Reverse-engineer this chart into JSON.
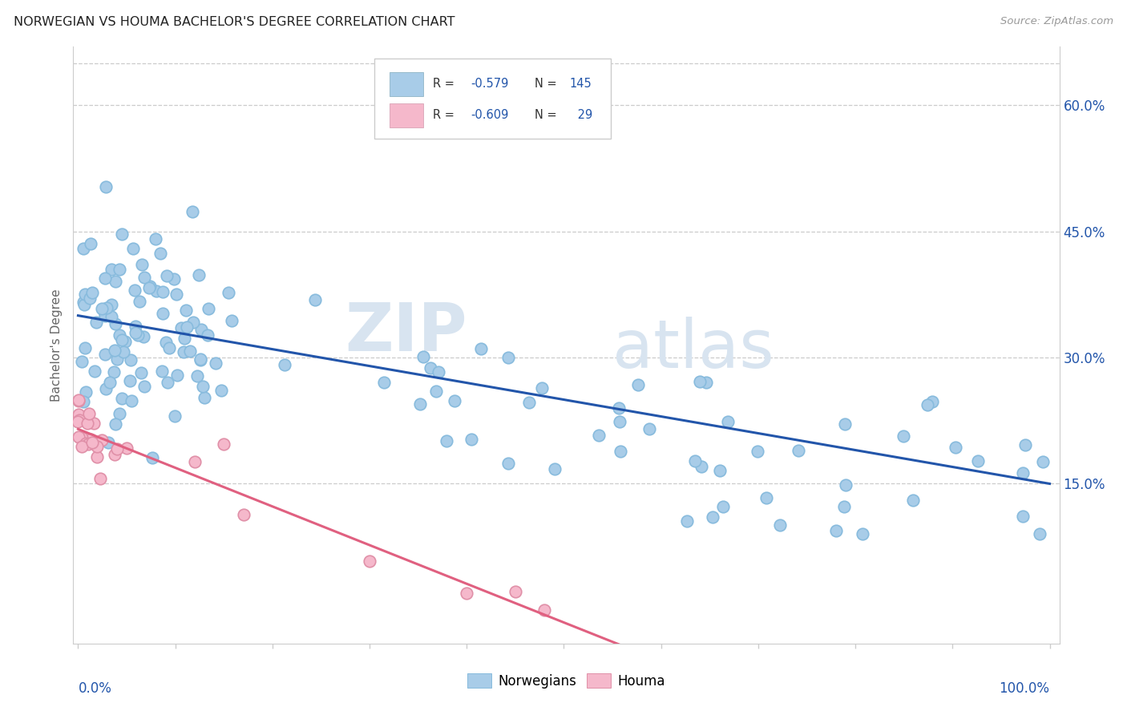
{
  "title": "NORWEGIAN VS HOUMA BACHELOR'S DEGREE CORRELATION CHART",
  "source": "Source: ZipAtlas.com",
  "ylabel": "Bachelor's Degree",
  "blue_color": "#a8cce8",
  "pink_color": "#f5b8cb",
  "blue_line_color": "#2255aa",
  "pink_line_color": "#e06080",
  "blue_r": -0.579,
  "blue_n": 145,
  "pink_r": -0.609,
  "pink_n": 29,
  "blue_intercept": 35.0,
  "blue_slope": -20.0,
  "pink_intercept": 21.5,
  "pink_slope": -46.0,
  "yticks": [
    15.0,
    30.0,
    45.0,
    60.0
  ],
  "ytick_labels": [
    "15.0%",
    "30.0%",
    "45.0%",
    "60.0%"
  ],
  "grid_color": "#cccccc",
  "title_color": "#222222",
  "source_color": "#999999",
  "watermark_color": "#d8e4f0"
}
